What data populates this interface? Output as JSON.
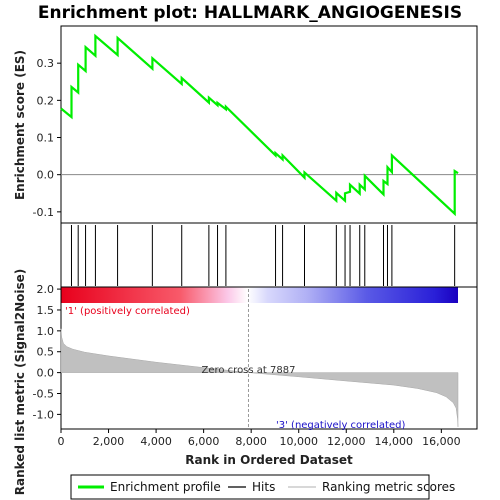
{
  "chart_data": {
    "type": "line",
    "title": "Enrichment plot: HALLMARK_ANGIOGENESIS",
    "top_panel": {
      "ylabel": "Enrichment score (ES)",
      "ylim": [
        -0.13,
        0.4
      ],
      "yticks": [
        -0.1,
        0.0,
        0.1,
        0.2,
        0.3
      ],
      "ytick_labels": [
        "-0.1",
        "0.0",
        "0.1",
        "0.2",
        "0.3"
      ],
      "series": [
        {
          "name": "Enrichment profile",
          "color": "#00ee00",
          "x": [
            0,
            441,
            441,
            723,
            723,
            1033,
            1033,
            1448,
            1448,
            2380,
            2380,
            3843,
            3843,
            5079,
            5079,
            6221,
            6221,
            6585,
            6585,
            6937,
            6937,
            9025,
            9025,
            9321,
            9321,
            10243,
            10243,
            11583,
            11583,
            11949,
            11949,
            12159,
            12159,
            12567,
            12567,
            12779,
            12779,
            13567,
            13567,
            13734,
            13734,
            13920,
            13920,
            16560,
            16560,
            16700
          ],
          "y": [
            0.178,
            0.155,
            0.236,
            0.221,
            0.296,
            0.279,
            0.343,
            0.32,
            0.373,
            0.322,
            0.368,
            0.285,
            0.313,
            0.244,
            0.26,
            0.194,
            0.207,
            0.187,
            0.193,
            0.176,
            0.183,
            0.052,
            0.058,
            0.041,
            0.052,
            -0.008,
            0.006,
            -0.07,
            -0.049,
            -0.07,
            -0.05,
            -0.046,
            -0.027,
            -0.051,
            -0.027,
            -0.04,
            -0.003,
            -0.053,
            -0.017,
            -0.025,
            0.02,
            0.007,
            0.052,
            -0.105,
            0.01,
            0.004
          ]
        }
      ]
    },
    "hits_panel": {
      "hit_positions": [
        441,
        723,
        1033,
        1448,
        2380,
        3843,
        5079,
        6221,
        6585,
        6937,
        9025,
        9321,
        10243,
        11583,
        11949,
        12159,
        12567,
        12779,
        13567,
        13734,
        13920,
        16560
      ]
    },
    "ranking_panel": {
      "xlabel": "Rank in Ordered Dataset",
      "ylabel": "Ranked list metric (Signal2Noise)",
      "ylim": [
        -1.35,
        2.05
      ],
      "yticks": [
        -1.0,
        -0.5,
        0.0,
        0.5,
        1.0,
        1.5,
        2.0
      ],
      "ytick_labels": [
        "-1.0",
        "-0.5",
        "0.0",
        "0.5",
        "1.0",
        "1.5",
        "2.0"
      ],
      "xlim": [
        0,
        17500
      ],
      "xticks": [
        0,
        2000,
        4000,
        6000,
        8000,
        10000,
        12000,
        14000,
        16000
      ],
      "xtick_labels": [
        "0",
        "2,000",
        "4,000",
        "6,000",
        "8,000",
        "10,000",
        "12,000",
        "14,000",
        "16,000"
      ],
      "n_genes": 16700,
      "zero_cross": 7887,
      "zero_cross_label": "Zero cross at 7887",
      "positive_label": "'1' (positively correlated)",
      "negative_label": "'3' (negatively correlated)",
      "metric_profile": {
        "x": [
          0,
          30,
          100,
          250,
          500,
          1000,
          2000,
          4000,
          6000,
          7887,
          10000,
          12000,
          14000,
          15000,
          15800,
          16200,
          16500,
          16620,
          16680,
          16700
        ],
        "y": [
          1.05,
          0.85,
          0.7,
          0.62,
          0.56,
          0.49,
          0.4,
          0.25,
          0.12,
          0.0,
          -0.1,
          -0.2,
          -0.3,
          -0.38,
          -0.48,
          -0.58,
          -0.72,
          -0.85,
          -1.1,
          -1.3
        ]
      }
    },
    "legend": {
      "items": [
        {
          "label": "Enrichment profile",
          "color": "#00ee00"
        },
        {
          "label": "Hits",
          "color": "#000000"
        },
        {
          "label": "Ranking metric scores",
          "color": "#c0c0c0"
        }
      ]
    },
    "colors": {
      "positive_red": "#e8001c",
      "negative_blue": "#1a00d8",
      "zero_line": "#808080",
      "profile_green": "#00ee00"
    }
  }
}
